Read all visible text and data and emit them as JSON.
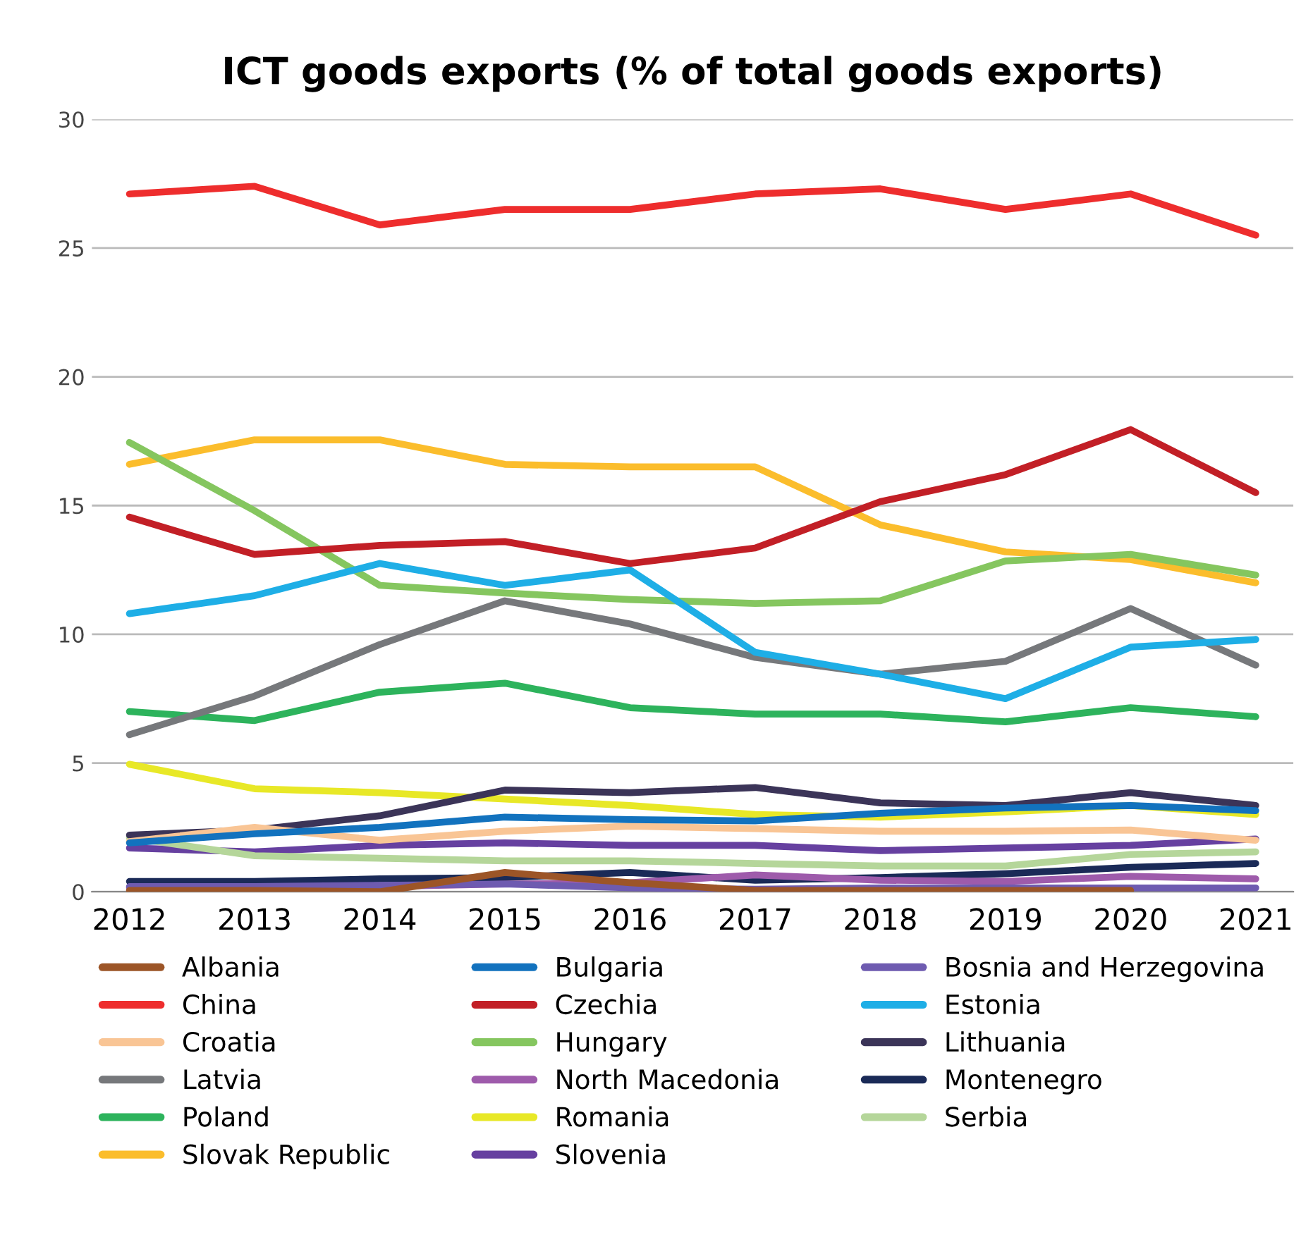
{
  "chart_data": {
    "type": "line",
    "title": "ICT goods exports (% of total goods exports)",
    "x": [
      2012,
      2013,
      2014,
      2015,
      2016,
      2017,
      2018,
      2019,
      2020,
      2021
    ],
    "xlim": [
      2011.7,
      2021.3
    ],
    "xticks": [
      2012,
      2013,
      2014,
      2015,
      2016,
      2017,
      2018,
      2019,
      2020,
      2021
    ],
    "ylim": [
      0,
      30
    ],
    "yticks": [
      0,
      5,
      10,
      15,
      20,
      25,
      30
    ],
    "grid": "y",
    "legend": "bottom",
    "marker": "none",
    "line_style": "solid",
    "series": [
      {
        "name": "Albania",
        "color": "#9c5527",
        "values": [
          0.05,
          0.05,
          0.0,
          0.75,
          0.35,
          0.05,
          0.05,
          0.05,
          0.05,
          null
        ]
      },
      {
        "name": "Bulgaria",
        "color": "#1272be",
        "values": [
          1.9,
          2.25,
          2.5,
          2.9,
          2.8,
          2.75,
          3.05,
          3.25,
          3.35,
          3.15
        ]
      },
      {
        "name": "Bosnia and Herzegovina",
        "color": "#6e5bb0",
        "values": [
          0.2,
          0.2,
          0.25,
          0.3,
          0.15,
          0.1,
          0.15,
          0.15,
          0.15,
          0.15
        ]
      },
      {
        "name": "China",
        "color": "#ee2d2d",
        "values": [
          27.1,
          27.4,
          25.9,
          26.5,
          26.5,
          27.1,
          27.3,
          26.5,
          27.1,
          25.5
        ]
      },
      {
        "name": "Czechia",
        "color": "#c21f26",
        "values": [
          14.55,
          13.1,
          13.45,
          13.6,
          12.75,
          13.35,
          15.15,
          16.2,
          17.95,
          15.5
        ]
      },
      {
        "name": "Estonia",
        "color": "#1eaee6",
        "values": [
          10.8,
          11.5,
          12.75,
          11.9,
          12.5,
          9.3,
          8.45,
          7.5,
          9.5,
          9.8
        ]
      },
      {
        "name": "Croatia",
        "color": "#f9c595",
        "values": [
          1.95,
          2.5,
          2.0,
          2.35,
          2.55,
          2.45,
          2.35,
          2.35,
          2.4,
          2.0
        ]
      },
      {
        "name": "Hungary",
        "color": "#85c65f",
        "values": [
          17.45,
          14.8,
          11.9,
          11.6,
          11.35,
          11.2,
          11.3,
          12.85,
          13.1,
          12.3
        ]
      },
      {
        "name": "Lithuania",
        "color": "#3b3458",
        "values": [
          2.2,
          2.4,
          2.95,
          3.95,
          3.85,
          4.05,
          3.45,
          3.35,
          3.85,
          3.35
        ]
      },
      {
        "name": "Latvia",
        "color": "#76787b",
        "values": [
          6.1,
          7.6,
          9.6,
          11.3,
          10.4,
          9.1,
          8.45,
          8.95,
          11.0,
          8.8
        ]
      },
      {
        "name": "North Macedonia",
        "color": "#9e5bab",
        "values": [
          0.15,
          0.2,
          0.2,
          0.3,
          0.35,
          0.65,
          0.45,
          0.4,
          0.6,
          0.5
        ]
      },
      {
        "name": "Montenegro",
        "color": "#1a2a57",
        "values": [
          0.4,
          0.4,
          0.5,
          0.55,
          0.75,
          0.45,
          0.55,
          0.7,
          0.95,
          1.1
        ]
      },
      {
        "name": "Poland",
        "color": "#2db35c",
        "values": [
          7.0,
          6.65,
          7.75,
          8.1,
          7.15,
          6.9,
          6.9,
          6.6,
          7.15,
          6.8
        ]
      },
      {
        "name": "Romania",
        "color": "#e8e827",
        "values": [
          4.95,
          4.0,
          3.85,
          3.6,
          3.35,
          3.0,
          2.9,
          3.1,
          3.35,
          3.0
        ]
      },
      {
        "name": "Serbia",
        "color": "#b5d69a",
        "values": [
          2.1,
          1.4,
          1.3,
          1.2,
          1.2,
          1.1,
          1.0,
          1.0,
          1.45,
          1.55
        ]
      },
      {
        "name": "Slovak Republic",
        "color": "#fbbd2c",
        "values": [
          16.6,
          17.55,
          17.55,
          16.6,
          16.5,
          16.5,
          14.25,
          13.2,
          12.9,
          12.0
        ]
      },
      {
        "name": "Slovenia",
        "color": "#6640a0",
        "values": [
          1.7,
          1.55,
          1.8,
          1.9,
          1.8,
          1.8,
          1.6,
          1.7,
          1.8,
          2.05
        ]
      }
    ]
  }
}
